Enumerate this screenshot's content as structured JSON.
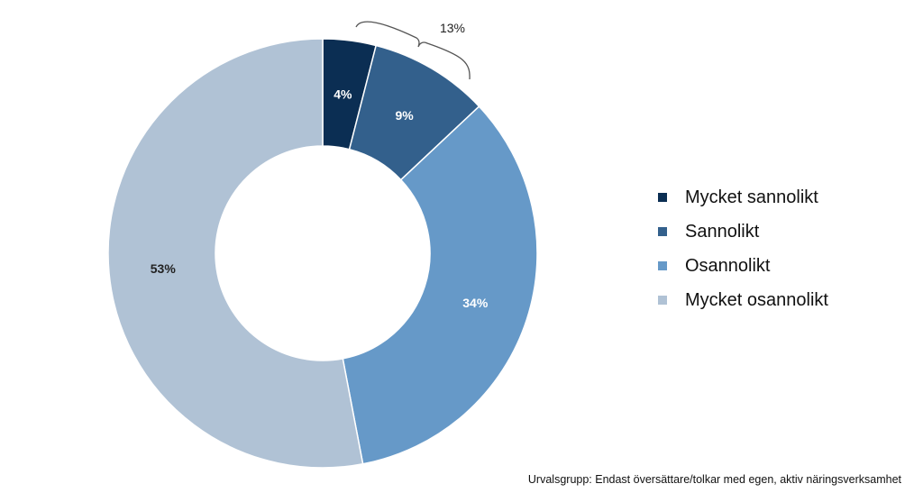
{
  "chart_data": {
    "type": "pie",
    "variant": "donut",
    "title": "",
    "categories": [
      "Mycket sannolikt",
      "Sannolikt",
      "Osannolikt",
      "Mycket osannolikt"
    ],
    "values": [
      4,
      9,
      34,
      53
    ],
    "labels": [
      "4%",
      "9%",
      "34%",
      "53%"
    ],
    "colors": [
      "#0b2e53",
      "#33608c",
      "#6699c8",
      "#b0c2d5"
    ],
    "label_colors": [
      "#ffffff",
      "#ffffff",
      "#ffffff",
      "#222222"
    ],
    "annotation": {
      "text": "13%",
      "spans": [
        "Mycket sannolikt",
        "Sannolikt"
      ]
    },
    "legend_position": "right"
  },
  "footnote": "Urvalsgrupp: Endast översättare/tolkar med egen, aktiv näringsverksamhet"
}
